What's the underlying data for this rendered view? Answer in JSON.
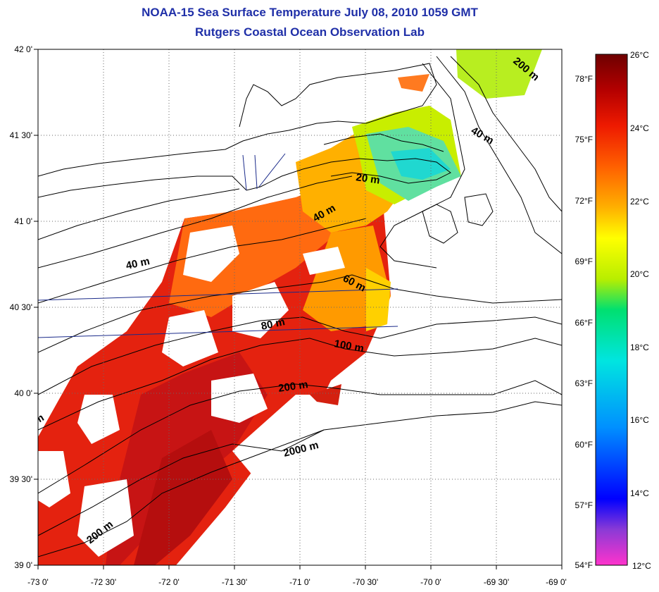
{
  "title": "NOAA-15 Sea Surface Temperature July 08, 2010 1059 GMT",
  "subtitle": "Rutgers Coastal Ocean Observation Lab",
  "map": {
    "lon_range": [
      -73.0,
      -69.0
    ],
    "lat_range": [
      39.0,
      42.0
    ],
    "lon_ticks": [
      "-73 0'",
      "-72 30'",
      "-72 0'",
      "-71 30'",
      "-71 0'",
      "-70 30'",
      "-70 0'",
      "-69 30'",
      "-69 0'"
    ],
    "lat_ticks": [
      "42 0'",
      "41 30'",
      "41 0'",
      "40 30'",
      "40 0'",
      "39 30'",
      "39 0'"
    ],
    "grid": "dotted",
    "depth_labels": [
      "20 m",
      "40 m",
      "40 m",
      "40 m",
      "60 m",
      "80 m",
      "100 m",
      "200 m",
      "200 m",
      "200 m",
      "2000 m",
      "m"
    ]
  },
  "colorbar": {
    "celsius_labels": [
      "26°C",
      "24°C",
      "22°C",
      "20°C",
      "18°C",
      "16°C",
      "14°C",
      "12°C"
    ],
    "fahrenheit_labels": [
      "78°F",
      "75°F",
      "72°F",
      "69°F",
      "66°F",
      "63°F",
      "60°F",
      "57°F",
      "54°F"
    ],
    "range_c": [
      12,
      26
    ],
    "colors": [
      "#ff33cc",
      "#8a3ad6",
      "#0000ff",
      "#0090ff",
      "#00e5e0",
      "#00e070",
      "#b8ee00",
      "#ffff00",
      "#ffb000",
      "#ff6000",
      "#ee1a00",
      "#b40000",
      "#6e0000"
    ]
  }
}
